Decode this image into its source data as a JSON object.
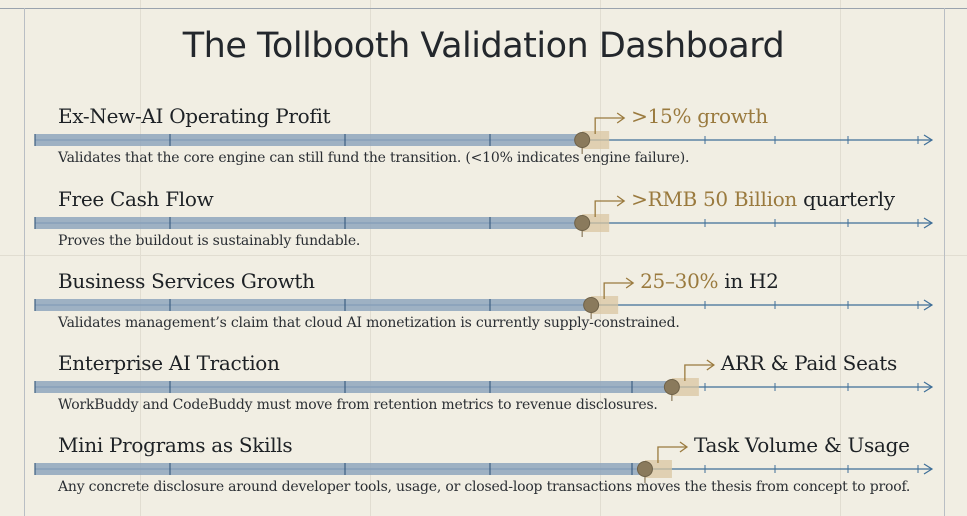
{
  "title": "The Tollbooth Validation Dashboard",
  "colors": {
    "background": "#f1eee3",
    "bar": "#8fa6bd",
    "marker": "#8a7a5c",
    "accent": "#9a7a3e",
    "zone": "#d9c6a2",
    "axis": "#3f6f98"
  },
  "metrics": [
    {
      "name": "Ex-New-AI Operating Profit",
      "target_em": ">15% growth",
      "target_rest": "",
      "description": "Validates that the core engine can still fund the transition. (<10% indicates engine failure).",
      "progress": 0.61
    },
    {
      "name": "Free Cash Flow",
      "target_em": ">RMB 50 Billion",
      "target_rest": "quarterly",
      "description": "Proves the buildout is sustainably fundable.",
      "progress": 0.61
    },
    {
      "name": "Business Services Growth",
      "target_em": "25–30%",
      "target_rest": "in H2",
      "description": "Validates management’s claim that cloud AI monetization is currently supply-constrained.",
      "progress": 0.62
    },
    {
      "name": "Enterprise AI Traction",
      "target_em": "",
      "target_rest": "ARR & Paid Seats",
      "description": "WorkBuddy and CodeBuddy must move from retention metrics to revenue disclosures.",
      "progress": 0.71
    },
    {
      "name": "Mini Programs as Skills",
      "target_em": "",
      "target_rest": "Task Volume & Usage",
      "description": "Any concrete disclosure around developer tools, usage, or closed-loop transactions moves the thesis from concept to proof.",
      "progress": 0.68
    }
  ]
}
